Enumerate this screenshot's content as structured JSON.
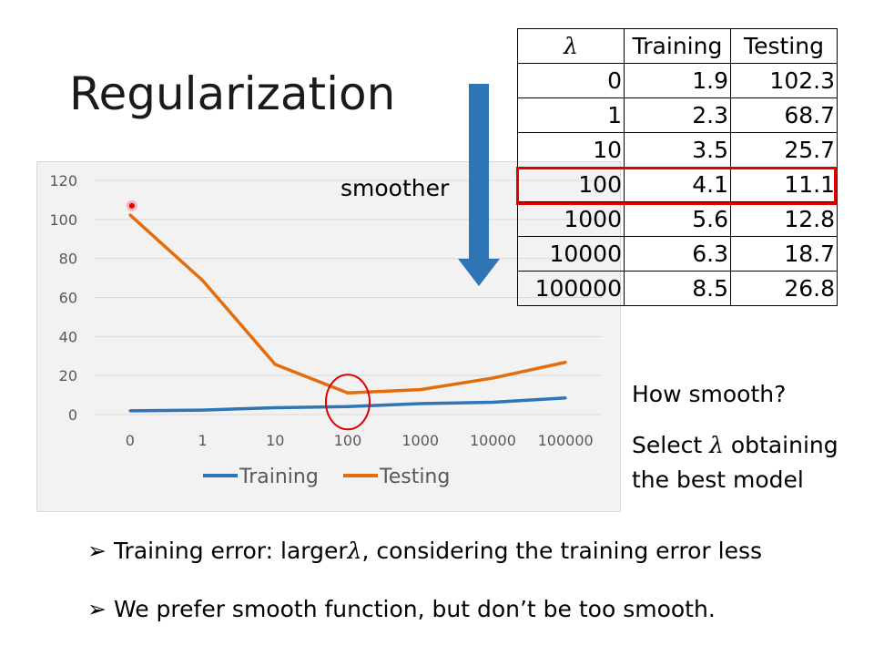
{
  "slide": {
    "title": "Regularization",
    "smoother_label": "smoother",
    "side_question": "How smooth?",
    "side_select_pre": "Select ",
    "side_select_lambda": "λ",
    "side_select_post": " obtaining the best model",
    "bullets": [
      {
        "marker": "➢",
        "text": "Training error: larger",
        "lambda": "λ",
        "rest": ", considering the training error less"
      },
      {
        "marker": "➢",
        "text": "We prefer smooth function, but don’t be too smooth.",
        "lambda": "",
        "rest": ""
      }
    ]
  },
  "table": {
    "headers": [
      "λ",
      "Training",
      "Testing"
    ],
    "rows": [
      [
        "0",
        "1.9",
        "102.3"
      ],
      [
        "1",
        "2.3",
        "68.7"
      ],
      [
        "10",
        "3.5",
        "25.7"
      ],
      [
        "100",
        "4.1",
        "11.1"
      ],
      [
        "1000",
        "5.6",
        "12.8"
      ],
      [
        "10000",
        "6.3",
        "18.7"
      ],
      [
        "100000",
        "8.5",
        "26.8"
      ]
    ],
    "highlight_row": 3,
    "highlight_color": "#e00000"
  },
  "colors": {
    "training": "#2e75b6",
    "testing": "#e46c0a",
    "arrow": "#2e75b6",
    "circle": "#e00000"
  },
  "chart_data": {
    "type": "line",
    "categories": [
      "0",
      "1",
      "10",
      "100",
      "1000",
      "10000",
      "100000"
    ],
    "series": [
      {
        "name": "Training",
        "values": [
          1.9,
          2.3,
          3.5,
          4.1,
          5.6,
          6.3,
          8.5
        ]
      },
      {
        "name": "Testing",
        "values": [
          102.3,
          68.7,
          25.7,
          11.1,
          12.8,
          18.7,
          26.8
        ]
      }
    ],
    "yticks": [
      "0",
      "20",
      "40",
      "60",
      "80",
      "100",
      "120"
    ],
    "ylim": [
      0,
      120
    ],
    "grid": true,
    "legend": "bottom",
    "highlight_category": "100"
  }
}
